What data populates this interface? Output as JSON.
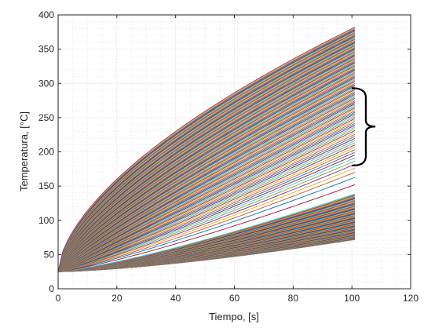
{
  "chart_data": {
    "type": "line",
    "title": "",
    "xlabel": "Tiempo,  [s]",
    "ylabel": "Temperatura,  [°C]",
    "xlim": [
      0,
      120
    ],
    "ylim": [
      0,
      400
    ],
    "xticks": [
      0,
      20,
      40,
      60,
      80,
      100,
      120
    ],
    "yticks": [
      0,
      50,
      100,
      150,
      200,
      250,
      300,
      350,
      400
    ],
    "grid": "dotted major and minor",
    "legend": "none",
    "series_description": "Approx. 200 heating curves of temperature vs time, all starting at 25 °C at t = 0 s and ending at t = 101 s with final temperatures between ~72 °C and ~382 °C; upper curves rise steeply at first (concave), lower curves rise slowly (convex). A brace marks the cluster of curves between ~180 °C and ~293 °C at t ≈ 101 s.",
    "series_params": {
      "t0": 0,
      "t_end": 101,
      "T_start": 25,
      "T_end_min": 72,
      "T_end_max": 382,
      "curve_count": 200
    },
    "annotation": {
      "type": "brace",
      "x": 101,
      "y_range": [
        180,
        293
      ],
      "tip_x": 108,
      "tip_y": 237
    },
    "palette": [
      "#0072BD",
      "#D95319",
      "#EDB120",
      "#7E2F8E",
      "#77AC30",
      "#4DBEEE",
      "#A2142F"
    ]
  }
}
